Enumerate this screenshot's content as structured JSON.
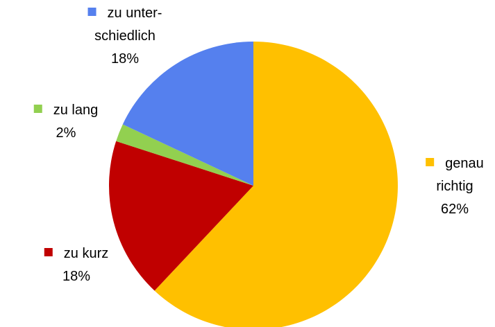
{
  "chart_data": {
    "type": "pie",
    "categories": [
      "genau\nrichtig",
      "zu kurz",
      "zu lang",
      "zu unter-\nschiedlich"
    ],
    "values": [
      62,
      18,
      2,
      18
    ],
    "value_labels": [
      "62%",
      "18%",
      "2%",
      "18%"
    ],
    "colors": [
      "#ffc000",
      "#c00000",
      "#92d050",
      "#5580ee"
    ]
  }
}
